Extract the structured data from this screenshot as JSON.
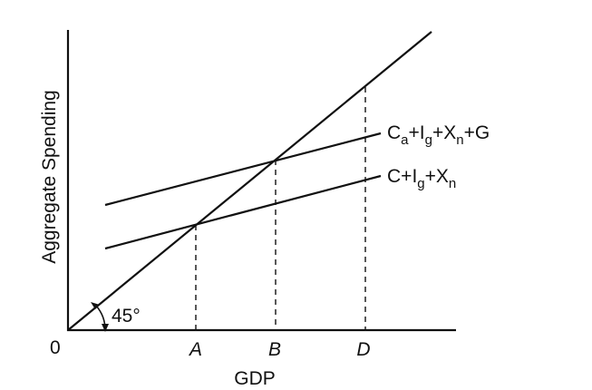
{
  "axes": {
    "y_label": "Aggregate Spending",
    "x_label": "GDP",
    "origin_label": "0"
  },
  "angle_label": "45°",
  "ticks": {
    "a": "A",
    "b": "B",
    "d": "D"
  },
  "curves": {
    "upper": {
      "label": "Ca+Ig+Xn+G",
      "parts": {
        "c": "C",
        "a_sub": "a",
        "plus1": "+",
        "i": "I",
        "g_sub": "g",
        "plus2": "+",
        "x": "X",
        "n_sub": "n",
        "tail": "+G"
      }
    },
    "lower": {
      "label": "C+Ig+Xn",
      "parts": {
        "c": "C+",
        "i": "I",
        "g_sub": "g",
        "plus": "+",
        "x": "X",
        "n_sub": "n"
      }
    }
  }
}
